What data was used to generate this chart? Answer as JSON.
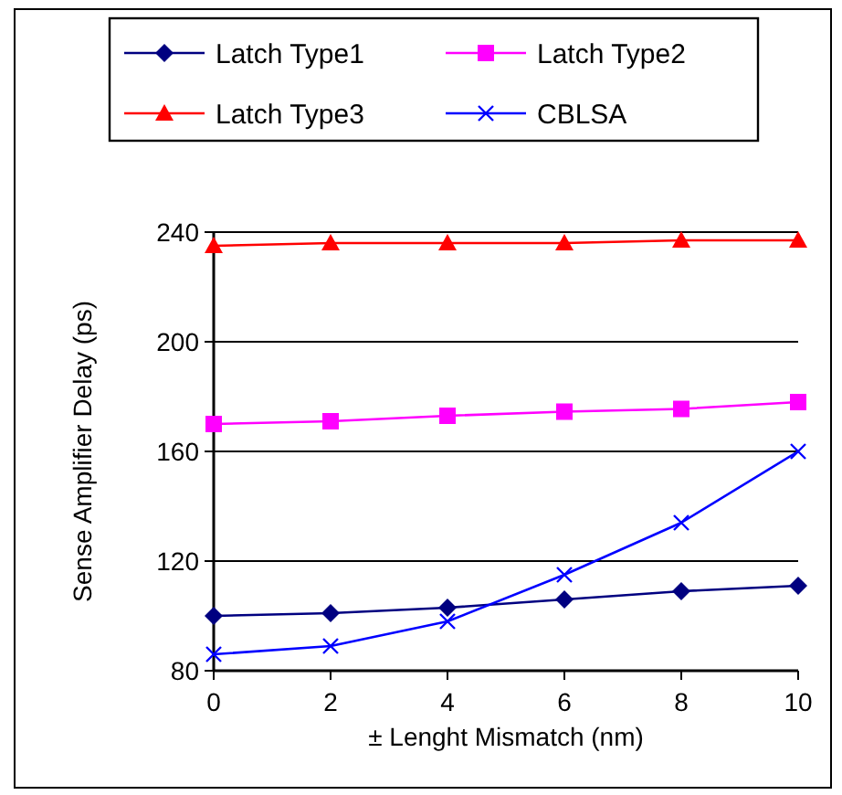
{
  "chart_data": {
    "type": "line",
    "xlabel": "± Lenght Mismatch (nm)",
    "ylabel": "Sense Amplifier Delay (ps)",
    "x": [
      0,
      2,
      4,
      6,
      8,
      10
    ],
    "xlim": [
      0,
      10
    ],
    "xticks": [
      0,
      2,
      4,
      6,
      8,
      10
    ],
    "ylim": [
      80,
      240
    ],
    "yticks": [
      80,
      120,
      160,
      200,
      240
    ],
    "grid": "y",
    "legend": "top",
    "series": [
      {
        "name": "Latch Type1",
        "color": "#000080",
        "marker": "diamond",
        "values": [
          100,
          101,
          103,
          106,
          109,
          111
        ]
      },
      {
        "name": "Latch Type2",
        "color": "#ff00ff",
        "marker": "square",
        "values": [
          170,
          171,
          173,
          174.5,
          175.5,
          178
        ]
      },
      {
        "name": "Latch Type3",
        "color": "#ff0000",
        "marker": "triangle",
        "values": [
          235,
          236,
          236,
          236,
          237,
          237
        ]
      },
      {
        "name": "CBLSA",
        "color": "#0000ff",
        "marker": "cross",
        "values": [
          86,
          89,
          98,
          115,
          134,
          160
        ]
      }
    ]
  }
}
